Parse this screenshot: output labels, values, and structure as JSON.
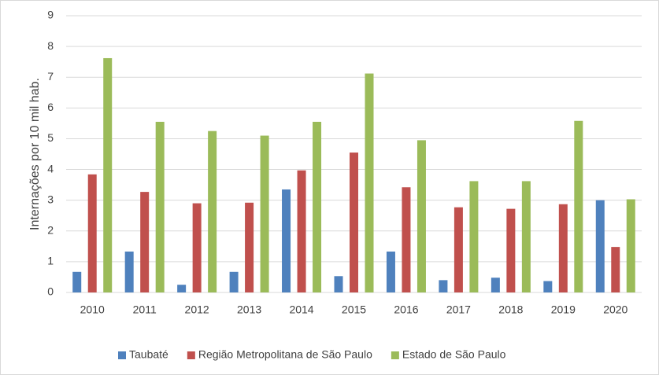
{
  "chart_data": {
    "type": "bar",
    "y_label": "Internações por  10 mil hab.",
    "categories": [
      "2010",
      "2011",
      "2012",
      "2013",
      "2014",
      "2015",
      "2016",
      "2017",
      "2018",
      "2019",
      "2020"
    ],
    "series": [
      {
        "name": "Taubaté",
        "color": "#4f81bd",
        "values": [
          0.67,
          1.33,
          0.25,
          0.67,
          3.35,
          0.53,
          1.33,
          0.4,
          0.48,
          0.37,
          3.0
        ]
      },
      {
        "name": "Região Metropolitana de São Paulo",
        "color": "#c0504d",
        "values": [
          3.84,
          3.27,
          2.9,
          2.92,
          3.97,
          4.55,
          3.42,
          2.77,
          2.72,
          2.87,
          1.48
        ]
      },
      {
        "name": "Estado de São Paulo",
        "color": "#9bbb59",
        "values": [
          7.62,
          5.55,
          5.25,
          5.1,
          5.55,
          7.12,
          4.95,
          3.62,
          3.62,
          5.58,
          3.03
        ]
      }
    ],
    "ylim": [
      0,
      9
    ],
    "yticks": [
      0,
      1,
      2,
      3,
      4,
      5,
      6,
      7,
      8,
      9
    ],
    "grid": true,
    "legend": "bottom"
  }
}
